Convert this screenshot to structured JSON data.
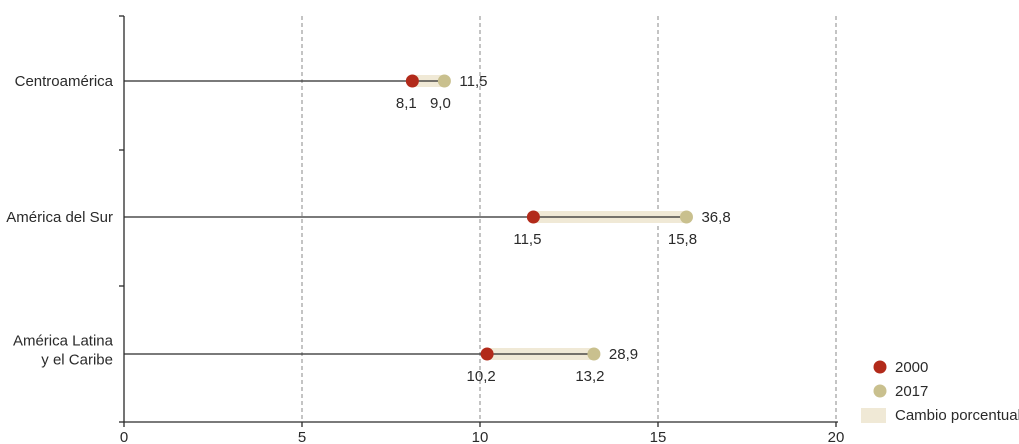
{
  "chart_data": {
    "type": "dumbbell",
    "categories": [
      "Centroamérica",
      "América del Sur",
      "América Latina y el Caribe"
    ],
    "category_lines": [
      [
        "Centroamérica"
      ],
      [
        "América del Sur"
      ],
      [
        "América Latina",
        "y el Caribe"
      ]
    ],
    "series": [
      {
        "name": "2000",
        "color": "#b22a1a",
        "values": [
          8.1,
          11.5,
          10.2
        ],
        "labels": [
          "8,1",
          "11,5",
          "10,2"
        ]
      },
      {
        "name": "2017",
        "color": "#c9c08e",
        "values": [
          9.0,
          15.8,
          13.2
        ],
        "labels": [
          "9,0",
          "15,8",
          "13,2"
        ]
      }
    ],
    "change": {
      "name": "Cambio porcentual",
      "color": "#f0e9d6",
      "values": [
        11.5,
        36.8,
        28.9
      ],
      "labels": [
        "11,5",
        "36,8",
        "28,9"
      ]
    },
    "xlim": [
      0,
      20
    ],
    "xticks": [
      0,
      5,
      10,
      15,
      20
    ],
    "xtick_labels": [
      "0",
      "5",
      "10",
      "15",
      "20"
    ],
    "grid": "vertical-dashed",
    "legend_position": "bottom-right"
  }
}
